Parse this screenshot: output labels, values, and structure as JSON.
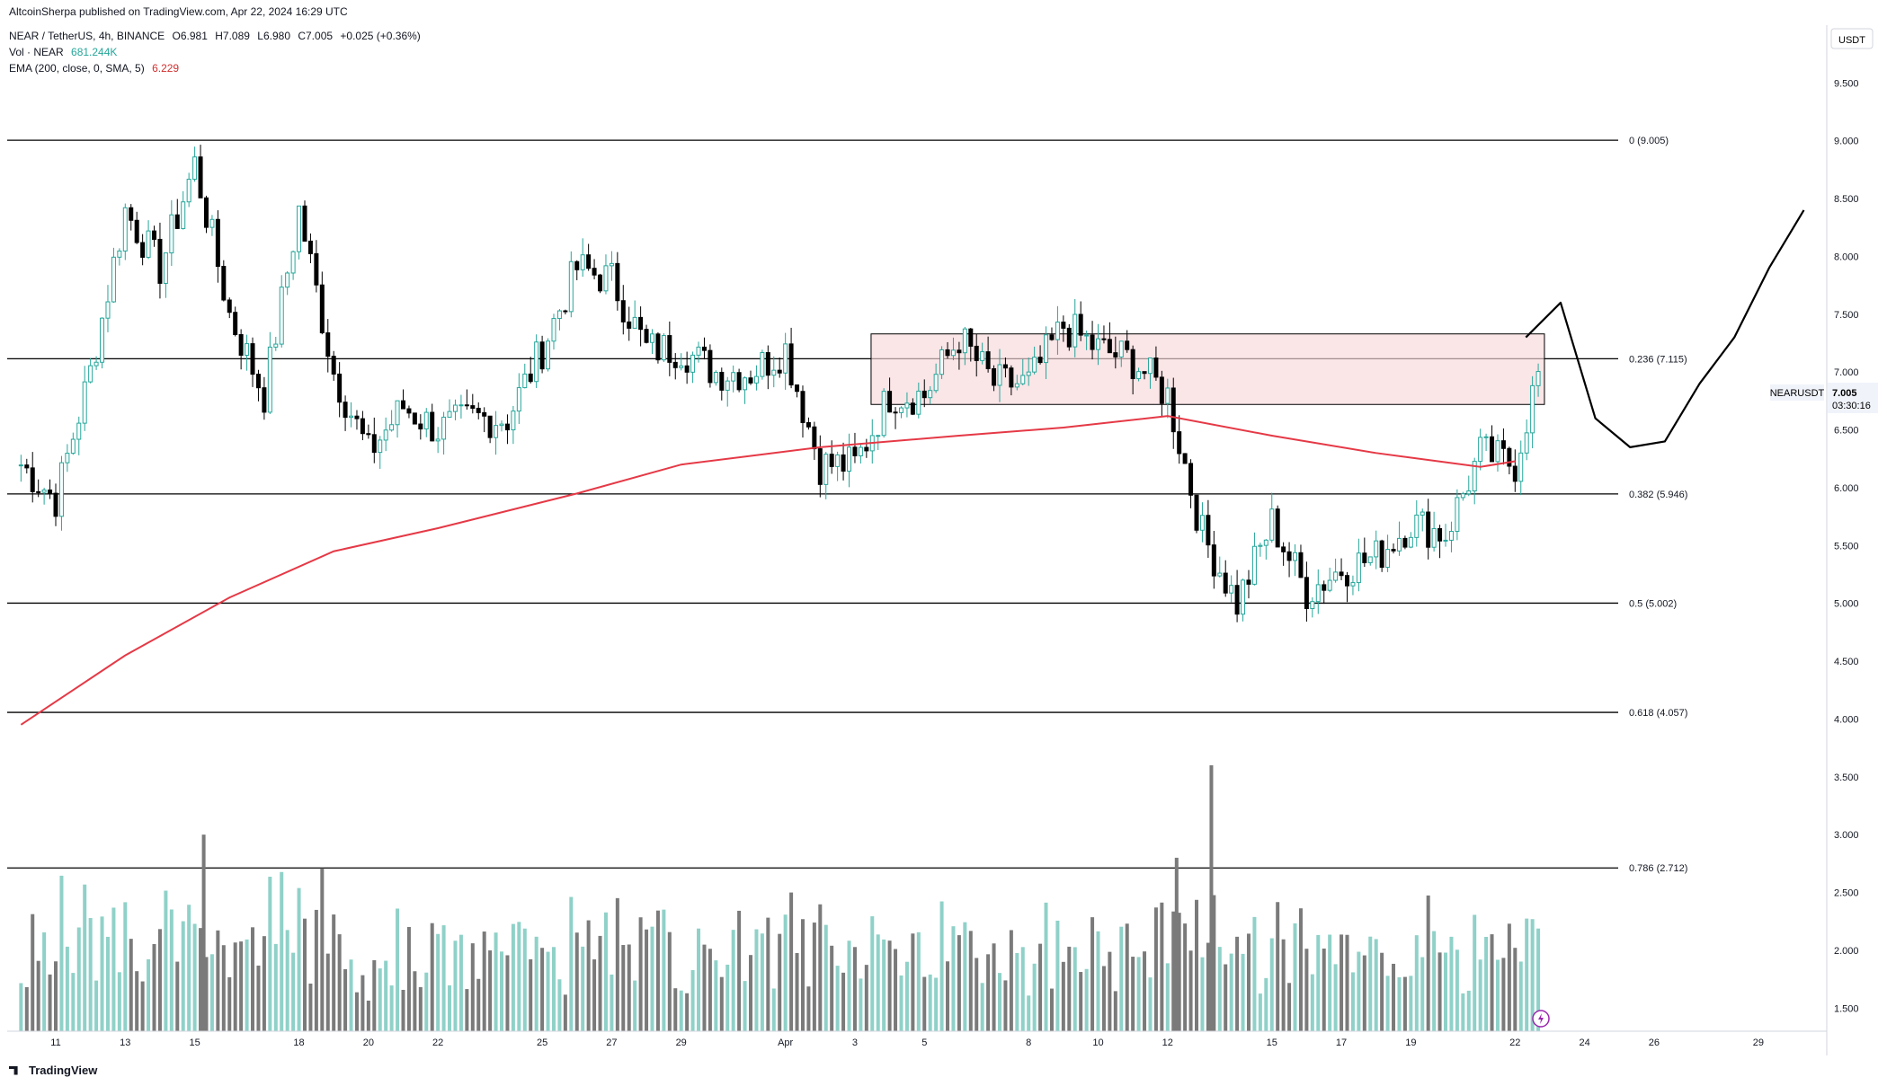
{
  "header": {
    "published": "AltcoinSherpa published on TradingView.com, Apr 22, 2024 16:29 UTC",
    "symbol": "NEAR / TetherUS, 4h, BINANCE",
    "open": "O6.981",
    "high": "H7.089",
    "low": "L6.980",
    "close": "C7.005",
    "change": "+0.025 (+0.36%)",
    "vol_label": "Vol · NEAR",
    "vol_value": "681.244K",
    "ema_label": "EMA (200, close, 0, SMA, 5)",
    "ema_value": "6.229"
  },
  "footer": {
    "brand": "TradingView"
  },
  "colors": {
    "up": "#26a69a",
    "down": "#000000",
    "ema": "#e53946",
    "box_fill": "#f8d7da",
    "vol_up": "#8fd1c8",
    "vol_down": "#7a7a7a"
  },
  "chart_data": {
    "type": "candlestick",
    "currency_label": "USDT",
    "symbol_tag": "NEARUSDT",
    "last_price": "7.005",
    "countdown": "03:30:16",
    "ylim": [
      1.3,
      10.0
    ],
    "y_ticks": [
      "9.500",
      "9.000",
      "8.500",
      "8.000",
      "7.500",
      "7.000",
      "6.500",
      "6.000",
      "5.500",
      "5.000",
      "4.500",
      "4.000",
      "3.500",
      "3.000",
      "2.500",
      "2.000",
      "1.500"
    ],
    "x_ticks": [
      "11",
      "13",
      "15",
      "18",
      "20",
      "22",
      "25",
      "27",
      "29",
      "Apr",
      "3",
      "5",
      "8",
      "10",
      "12",
      "15",
      "17",
      "19",
      "22",
      "24",
      "26",
      "29"
    ],
    "fib_levels": [
      {
        "label": "0 (9.005)",
        "value": 9.005
      },
      {
        "label": "0.236 (7.115)",
        "value": 7.115
      },
      {
        "label": "0.382 (5.946)",
        "value": 5.946
      },
      {
        "label": "0.5 (5.002)",
        "value": 5.002
      },
      {
        "label": "0.618 (4.057)",
        "value": 4.057
      },
      {
        "label": "0.786 (2.712)",
        "value": 2.712
      }
    ],
    "resistance_zone": {
      "top": 7.33,
      "bottom": 6.72,
      "from": "Apr 3",
      "to": "Apr 23"
    },
    "close_path_keypoints": [
      {
        "date": "Mar 10",
        "close": 6.2
      },
      {
        "date": "Mar 11",
        "close": 5.9
      },
      {
        "date": "Mar 12",
        "close": 7.0
      },
      {
        "date": "Mar 13",
        "close": 8.4
      },
      {
        "date": "Mar 14",
        "close": 7.9
      },
      {
        "date": "Mar 15",
        "close": 8.8
      },
      {
        "date": "Mar 16",
        "close": 7.5
      },
      {
        "date": "Mar 17",
        "close": 6.8
      },
      {
        "date": "Mar 18",
        "close": 8.4
      },
      {
        "date": "Mar 19",
        "close": 7.0
      },
      {
        "date": "Mar 20",
        "close": 6.3
      },
      {
        "date": "Mar 21",
        "close": 6.7
      },
      {
        "date": "Mar 22",
        "close": 6.5
      },
      {
        "date": "Mar 23",
        "close": 6.6
      },
      {
        "date": "Mar 24",
        "close": 6.6
      },
      {
        "date": "Mar 25",
        "close": 7.2
      },
      {
        "date": "Mar 26",
        "close": 7.9
      },
      {
        "date": "Mar 27",
        "close": 7.8
      },
      {
        "date": "Mar 28",
        "close": 7.2
      },
      {
        "date": "Mar 29",
        "close": 7.2
      },
      {
        "date": "Mar 30",
        "close": 7.0
      },
      {
        "date": "Mar 31",
        "close": 7.0
      },
      {
        "date": "Apr 1",
        "close": 7.2
      },
      {
        "date": "Apr 2",
        "close": 6.2
      },
      {
        "date": "Apr 3",
        "close": 6.2
      },
      {
        "date": "Apr 4",
        "close": 6.8
      },
      {
        "date": "Apr 5",
        "close": 6.8
      },
      {
        "date": "Apr 6",
        "close": 7.3
      },
      {
        "date": "Apr 7",
        "close": 6.9
      },
      {
        "date": "Apr 8",
        "close": 6.9
      },
      {
        "date": "Apr 9",
        "close": 7.4
      },
      {
        "date": "Apr 10",
        "close": 7.2
      },
      {
        "date": "Apr 11",
        "close": 7.1
      },
      {
        "date": "Apr 12",
        "close": 6.8
      },
      {
        "date": "Apr 13",
        "close": 5.6
      },
      {
        "date": "Apr 14",
        "close": 5.0
      },
      {
        "date": "Apr 15",
        "close": 5.7
      },
      {
        "date": "Apr 16",
        "close": 5.1
      },
      {
        "date": "Apr 17",
        "close": 5.3
      },
      {
        "date": "Apr 18",
        "close": 5.4
      },
      {
        "date": "Apr 19",
        "close": 5.7
      },
      {
        "date": "Apr 20",
        "close": 5.6
      },
      {
        "date": "Apr 21",
        "close": 6.3
      },
      {
        "date": "Apr 22",
        "close": 6.2
      },
      {
        "date": "Apr 22 16:00",
        "close": 7.005
      }
    ],
    "ema_200": [
      {
        "date": "Mar 10",
        "value": 3.95
      },
      {
        "date": "Mar 13",
        "value": 4.55
      },
      {
        "date": "Mar 16",
        "value": 5.05
      },
      {
        "date": "Mar 19",
        "value": 5.45
      },
      {
        "date": "Mar 22",
        "value": 5.65
      },
      {
        "date": "Mar 26",
        "value": 5.95
      },
      {
        "date": "Mar 29",
        "value": 6.2
      },
      {
        "date": "Apr 2",
        "value": 6.35
      },
      {
        "date": "Apr 6",
        "value": 6.45
      },
      {
        "date": "Apr 9",
        "value": 6.52
      },
      {
        "date": "Apr 12",
        "value": 6.62
      },
      {
        "date": "Apr 15",
        "value": 6.45
      },
      {
        "date": "Apr 18",
        "value": 6.3
      },
      {
        "date": "Apr 21",
        "value": 6.18
      },
      {
        "date": "Apr 22",
        "value": 6.229
      }
    ],
    "volume_peaks_usdt_axis": [
      {
        "date": "Mar 15",
        "value": 3.0
      },
      {
        "date": "Apr 12",
        "value": 2.8
      },
      {
        "date": "Apr 13",
        "value": 3.6
      }
    ],
    "projection_path": [
      {
        "date": "Apr 22",
        "value": 7.3
      },
      {
        "date": "Apr 23",
        "value": 7.6
      },
      {
        "date": "Apr 24",
        "value": 6.6
      },
      {
        "date": "Apr 25",
        "value": 6.35
      },
      {
        "date": "Apr 26",
        "value": 6.4
      },
      {
        "date": "Apr 27",
        "value": 6.9
      },
      {
        "date": "Apr 28",
        "value": 7.3
      },
      {
        "date": "Apr 29",
        "value": 7.9
      },
      {
        "date": "Apr 30",
        "value": 8.4
      }
    ]
  }
}
